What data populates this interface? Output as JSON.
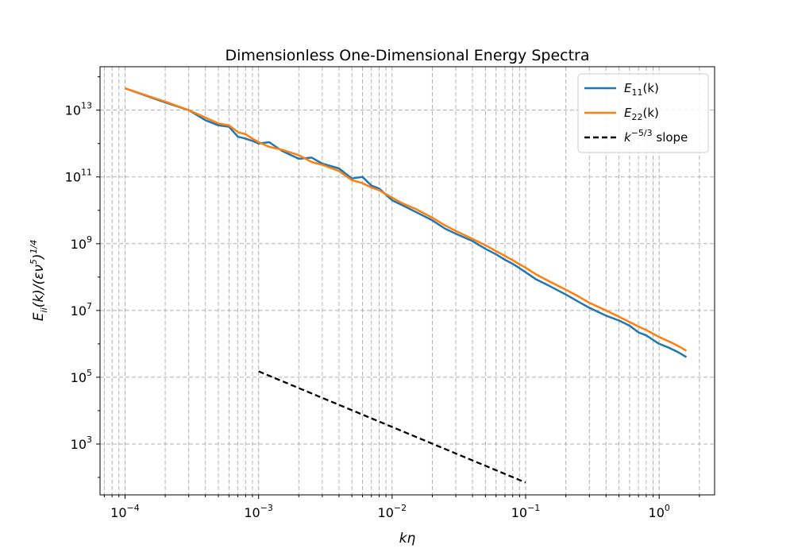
{
  "chart_data": {
    "type": "line",
    "title": "Dimensionless One-Dimensional Energy Spectra",
    "xlabel": "kη",
    "ylabel": "E_ii(k)/(εν^5)^(1/4)",
    "xscale": "log",
    "yscale": "log",
    "xlim": [
      6.5e-05,
      2.6
    ],
    "ylim": [
      30,
      200000000000000.0
    ],
    "grid": true,
    "grid_style": "dashed",
    "legend_position": "top-right",
    "x_ticks": [
      {
        "base": "10",
        "exp": "−4",
        "value": 0.0001
      },
      {
        "base": "10",
        "exp": "−3",
        "value": 0.001
      },
      {
        "base": "10",
        "exp": "−2",
        "value": 0.01
      },
      {
        "base": "10",
        "exp": "−1",
        "value": 0.1
      },
      {
        "base": "10",
        "exp": "0",
        "value": 1
      }
    ],
    "y_ticks": [
      {
        "base": "10",
        "exp": "3",
        "value": 1000
      },
      {
        "base": "10",
        "exp": "5",
        "value": 100000
      },
      {
        "base": "10",
        "exp": "7",
        "value": 10000000
      },
      {
        "base": "10",
        "exp": "9",
        "value": 1000000000
      },
      {
        "base": "10",
        "exp": "11",
        "value": 100000000000
      },
      {
        "base": "10",
        "exp": "13",
        "value": 10000000000000
      }
    ],
    "series": [
      {
        "name": "E11(k)",
        "label_main": "E",
        "label_sub": "11",
        "label_tail": "(k)",
        "color": "#1f77b4",
        "style": "solid",
        "x": [
          0.0001,
          0.0002,
          0.0003,
          0.0004,
          0.0005,
          0.0006,
          0.0007,
          0.0008,
          0.0009,
          0.001,
          0.0012,
          0.0015,
          0.002,
          0.0025,
          0.003,
          0.004,
          0.005,
          0.006,
          0.007,
          0.008,
          0.01,
          0.012,
          0.015,
          0.02,
          0.025,
          0.03,
          0.04,
          0.05,
          0.06,
          0.07,
          0.08,
          0.1,
          0.12,
          0.15,
          0.2,
          0.25,
          0.3,
          0.4,
          0.5,
          0.6,
          0.7,
          0.8,
          1.0,
          1.2,
          1.4,
          1.6
        ],
        "y": [
          45000000000000,
          17000000000000,
          10000000000000,
          5000000000000,
          3500000000000,
          3200000000000,
          1600000000000,
          1400000000000,
          1200000000000,
          1000000000000,
          1100000000000,
          600000000000,
          350000000000,
          380000000000,
          250000000000,
          180000000000,
          90000000000,
          100000000000,
          55000000000,
          45000000000,
          20000000000,
          14000000000,
          9000000000,
          5000000000,
          2800000000,
          2000000000,
          1200000000,
          700000000,
          480000000,
          330000000,
          250000000,
          140000000,
          85000000,
          55000000,
          30000000,
          18000000,
          12000000,
          7000000,
          5000000,
          3500000,
          2200000,
          1800000,
          1000000,
          750000,
          550000,
          400000
        ]
      },
      {
        "name": "E22(k)",
        "label_main": "E",
        "label_sub": "22",
        "label_tail": "(k)",
        "color": "#ff7f0e",
        "style": "solid",
        "x": [
          0.0001,
          0.0002,
          0.0003,
          0.0004,
          0.0005,
          0.0006,
          0.0007,
          0.0008,
          0.0009,
          0.001,
          0.0012,
          0.0015,
          0.002,
          0.0025,
          0.003,
          0.004,
          0.005,
          0.006,
          0.007,
          0.008,
          0.01,
          0.012,
          0.015,
          0.02,
          0.025,
          0.03,
          0.04,
          0.05,
          0.06,
          0.07,
          0.08,
          0.1,
          0.12,
          0.15,
          0.2,
          0.25,
          0.3,
          0.4,
          0.5,
          0.6,
          0.7,
          0.8,
          1.0,
          1.2,
          1.4,
          1.6
        ],
        "y": [
          45000000000000,
          18000000000000,
          10000000000000,
          6000000000000,
          4000000000000,
          3500000000000,
          2200000000000,
          1900000000000,
          1400000000000,
          1100000000000,
          800000000000,
          650000000000,
          450000000000,
          280000000000,
          230000000000,
          150000000000,
          80000000000,
          65000000000,
          48000000000,
          40000000000,
          24000000000,
          16000000000,
          11000000000,
          6000000000,
          3500000000,
          2400000000,
          1400000000,
          900000000,
          600000000,
          430000000,
          320000000,
          190000000,
          120000000,
          75000000,
          42000000,
          26000000,
          17000000,
          10000000,
          6500000,
          4500000,
          3300000,
          2600000,
          1600000,
          1150000,
          850000,
          620000
        ]
      },
      {
        "name": "k^(-5/3) slope",
        "label_main": "k",
        "label_sup": "−5/3",
        "label_tail": " slope",
        "color": "#000000",
        "style": "dashed",
        "x": [
          0.001,
          0.1
        ],
        "y": [
          150000,
          70
        ]
      }
    ]
  }
}
